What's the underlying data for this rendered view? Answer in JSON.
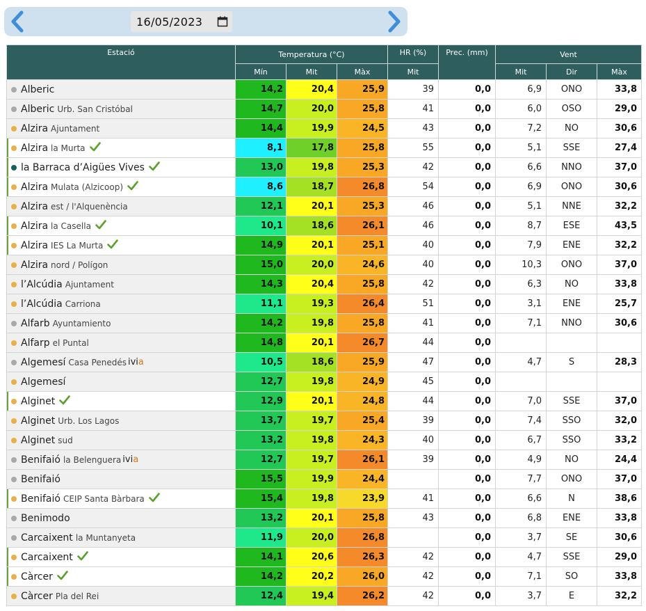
{
  "date": "16/05/2023",
  "headers": {
    "station": "Estació",
    "temperature": "Temperatura (°C)",
    "humidity": "HR (%)",
    "precip": "Prec. (mm)",
    "wind": "Vent",
    "min": "Mín",
    "mean": "Mit",
    "max": "Màx",
    "hr_mean": "Mit",
    "wind_mean": "Mit",
    "wind_dir": "Dir",
    "wind_max": "Màx"
  },
  "colors": {
    "dot_orange": "#e8b04a",
    "dot_gray": "#a9a9a9",
    "dot_teal": "#16605e",
    "check": "#5aa02c",
    "header": "#2e5e5e"
  },
  "rows": [
    {
      "name": "Alberic",
      "sub": "",
      "dot": "gray",
      "check": false,
      "ivia": false,
      "tmin": "14,2",
      "tmean": "20,4",
      "tmax": "25,9",
      "hr": "39",
      "prec": "0,0",
      "wmean": "6,9",
      "wdir": "ONO",
      "wmax": "33,8",
      "cmin": "#1fb81f",
      "cmean": "#ffff1a",
      "cmax": "#f9a825"
    },
    {
      "name": "Alberic",
      "sub": "Urb. San Cristóbal",
      "dot": "gray",
      "check": false,
      "ivia": false,
      "tmin": "14,7",
      "tmean": "20,0",
      "tmax": "25,8",
      "hr": "41",
      "prec": "0,0",
      "wmean": "6,0",
      "wdir": "OSO",
      "wmax": "29,0",
      "cmin": "#1fb81f",
      "cmean": "#c8f020",
      "cmax": "#f9a825"
    },
    {
      "name": "Alzira",
      "sub": "Ajuntament",
      "dot": "orange",
      "check": false,
      "ivia": false,
      "tmin": "14,4",
      "tmean": "19,9",
      "tmax": "24,5",
      "hr": "43",
      "prec": "0,0",
      "wmean": "7,2",
      "wdir": "NO",
      "wmax": "30,6",
      "cmin": "#1fb81f",
      "cmean": "#c8f020",
      "cmax": "#f9b525"
    },
    {
      "name": "Alzira",
      "sub": "la Murta",
      "dot": "orange",
      "check": true,
      "ivia": false,
      "tmin": "8,1",
      "tmean": "17,8",
      "tmax": "25,8",
      "hr": "55",
      "prec": "0,0",
      "wmean": "5,1",
      "wdir": "SSE",
      "wmax": "27,4",
      "cmin": "#1ff0ff",
      "cmean": "#6fd02a",
      "cmax": "#f9a825"
    },
    {
      "name": "la Barraca d’Aigües Vives",
      "sub": "",
      "dot": "teal",
      "check": true,
      "ivia": false,
      "tmin": "13,0",
      "tmean": "19,8",
      "tmax": "25,3",
      "hr": "42",
      "prec": "0,0",
      "wmean": "6,6",
      "wdir": "NNO",
      "wmax": "37,0",
      "cmin": "#22c855",
      "cmean": "#c8f020",
      "cmax": "#f9a825"
    },
    {
      "name": "Alzira",
      "sub": "Mulata (Alzicoop)",
      "dot": "orange",
      "check": true,
      "ivia": false,
      "tmin": "8,6",
      "tmean": "18,7",
      "tmax": "26,8",
      "hr": "54",
      "prec": "0,0",
      "wmean": "6,9",
      "wdir": "ONO",
      "wmax": "30,6",
      "cmin": "#1ff0ff",
      "cmean": "#a4e024",
      "cmax": "#f58a2a"
    },
    {
      "name": "Alzira",
      "sub": "est / l'Alquenència",
      "dot": "orange",
      "check": false,
      "ivia": false,
      "tmin": "12,1",
      "tmean": "20,1",
      "tmax": "25,3",
      "hr": "46",
      "prec": "0,0",
      "wmean": "5,1",
      "wdir": "NNE",
      "wmax": "32,2",
      "cmin": "#22c855",
      "cmean": "#ffff1a",
      "cmax": "#f9a825"
    },
    {
      "name": "Alzira",
      "sub": "la Casella",
      "dot": "orange",
      "check": true,
      "ivia": false,
      "tmin": "10,1",
      "tmean": "18,6",
      "tmax": "26,1",
      "hr": "46",
      "prec": "0,0",
      "wmean": "8,7",
      "wdir": "ESE",
      "wmax": "43,5",
      "cmin": "#1ee88a",
      "cmean": "#a4e024",
      "cmax": "#f58a2a"
    },
    {
      "name": "Alzira",
      "sub": "IES La Murta",
      "dot": "orange",
      "check": true,
      "ivia": false,
      "tmin": "14,9",
      "tmean": "20,1",
      "tmax": "25,1",
      "hr": "40",
      "prec": "0,0",
      "wmean": "7,9",
      "wdir": "ENE",
      "wmax": "32,2",
      "cmin": "#1fb81f",
      "cmean": "#ffff1a",
      "cmax": "#f9a825"
    },
    {
      "name": "Alzira",
      "sub": "nord / Polígon",
      "dot": "orange",
      "check": false,
      "ivia": false,
      "tmin": "15,0",
      "tmean": "20,0",
      "tmax": "24,6",
      "hr": "40",
      "prec": "0,0",
      "wmean": "10,3",
      "wdir": "ONO",
      "wmax": "37,0",
      "cmin": "#1fb81f",
      "cmean": "#c8f020",
      "cmax": "#f9b525"
    },
    {
      "name": "l’Alcúdia",
      "sub": "Ajuntament",
      "dot": "orange",
      "check": false,
      "ivia": false,
      "tmin": "14,3",
      "tmean": "20,4",
      "tmax": "25,8",
      "hr": "42",
      "prec": "0,0",
      "wmean": "6,3",
      "wdir": "NO",
      "wmax": "33,8",
      "cmin": "#1fb81f",
      "cmean": "#ffff1a",
      "cmax": "#f9a825"
    },
    {
      "name": "l’Alcúdia",
      "sub": "Carriona",
      "dot": "orange",
      "check": false,
      "ivia": false,
      "tmin": "11,1",
      "tmean": "19,3",
      "tmax": "26,4",
      "hr": "51",
      "prec": "0,0",
      "wmean": "3,1",
      "wdir": "ENE",
      "wmax": "25,7",
      "cmin": "#1ee88a",
      "cmean": "#c8f020",
      "cmax": "#f58a2a"
    },
    {
      "name": "Alfarb",
      "sub": "Ayuntamiento",
      "dot": "gray",
      "check": false,
      "ivia": false,
      "tmin": "14,2",
      "tmean": "19,8",
      "tmax": "25,8",
      "hr": "41",
      "prec": "0,0",
      "wmean": "7,1",
      "wdir": "NNO",
      "wmax": "30,6",
      "cmin": "#1fb81f",
      "cmean": "#c8f020",
      "cmax": "#f9a825"
    },
    {
      "name": "Alfarp",
      "sub": "el Puntal",
      "dot": "orange",
      "check": false,
      "ivia": false,
      "tmin": "14,8",
      "tmean": "20,1",
      "tmax": "26,7",
      "hr": "44",
      "prec": "0,0",
      "wmean": "",
      "wdir": "",
      "wmax": "",
      "cmin": "#1fb81f",
      "cmean": "#ffff1a",
      "cmax": "#f58a2a"
    },
    {
      "name": "Algemesí",
      "sub": "Casa Penedés",
      "dot": "gray",
      "check": false,
      "ivia": true,
      "tmin": "10,5",
      "tmean": "18,6",
      "tmax": "25,9",
      "hr": "47",
      "prec": "0,0",
      "wmean": "4,7",
      "wdir": "S",
      "wmax": "28,3",
      "cmin": "#1ee88a",
      "cmean": "#a4e024",
      "cmax": "#f9a825"
    },
    {
      "name": "Algemesí",
      "sub": "",
      "dot": "orange",
      "check": false,
      "ivia": false,
      "tmin": "12,7",
      "tmean": "19,8",
      "tmax": "24,9",
      "hr": "45",
      "prec": "0,0",
      "wmean": "",
      "wdir": "",
      "wmax": "",
      "cmin": "#22c855",
      "cmean": "#c8f020",
      "cmax": "#f9b525"
    },
    {
      "name": "Alginet",
      "sub": "",
      "dot": "orange",
      "check": true,
      "ivia": false,
      "tmin": "12,9",
      "tmean": "20,1",
      "tmax": "24,8",
      "hr": "44",
      "prec": "0,0",
      "wmean": "7,0",
      "wdir": "SSE",
      "wmax": "37,0",
      "cmin": "#22c855",
      "cmean": "#ffff1a",
      "cmax": "#f9b525"
    },
    {
      "name": "Alginet",
      "sub": "Urb. Los Lagos",
      "dot": "orange",
      "check": false,
      "ivia": false,
      "tmin": "13,7",
      "tmean": "19,7",
      "tmax": "25,4",
      "hr": "39",
      "prec": "0,0",
      "wmean": "7,4",
      "wdir": "SSO",
      "wmax": "32,0",
      "cmin": "#22c855",
      "cmean": "#c8f020",
      "cmax": "#f9a825"
    },
    {
      "name": "Alginet",
      "sub": "sud",
      "dot": "orange",
      "check": false,
      "ivia": false,
      "tmin": "13,2",
      "tmean": "19,8",
      "tmax": "24,3",
      "hr": "40",
      "prec": "0,0",
      "wmean": "6,7",
      "wdir": "SSO",
      "wmax": "33,2",
      "cmin": "#22c855",
      "cmean": "#c8f020",
      "cmax": "#f9b525"
    },
    {
      "name": "Benifaió",
      "sub": "la Belenguera",
      "dot": "gray",
      "check": false,
      "ivia": true,
      "tmin": "12,7",
      "tmean": "19,7",
      "tmax": "26,1",
      "hr": "39",
      "prec": "0,0",
      "wmean": "4,9",
      "wdir": "NO",
      "wmax": "24,4",
      "cmin": "#22c855",
      "cmean": "#c8f020",
      "cmax": "#f58a2a"
    },
    {
      "name": "Benifaió",
      "sub": "",
      "dot": "gray",
      "check": false,
      "ivia": false,
      "tmin": "15,5",
      "tmean": "19,9",
      "tmax": "24,4",
      "hr": "",
      "prec": "0,0",
      "wmean": "7,7",
      "wdir": "ONO",
      "wmax": "37,0",
      "cmin": "#1fb81f",
      "cmean": "#c8f020",
      "cmax": "#f9b525"
    },
    {
      "name": "Benifaió",
      "sub": "CEIP Santa Bàrbara",
      "dot": "orange",
      "check": true,
      "ivia": false,
      "tmin": "15,4",
      "tmean": "19,8",
      "tmax": "23,9",
      "hr": "41",
      "prec": "0,0",
      "wmean": "6,6",
      "wdir": "N",
      "wmax": "38,6",
      "cmin": "#1fb81f",
      "cmean": "#c8f020",
      "cmax": "#f7d92a"
    },
    {
      "name": "Benimodo",
      "sub": "",
      "dot": "gray",
      "check": false,
      "ivia": false,
      "tmin": "13,2",
      "tmean": "20,1",
      "tmax": "25,8",
      "hr": "43",
      "prec": "0,0",
      "wmean": "6,8",
      "wdir": "ENE",
      "wmax": "33,8",
      "cmin": "#22c855",
      "cmean": "#ffff1a",
      "cmax": "#f9a825"
    },
    {
      "name": "Carcaixent",
      "sub": "la Muntanyeta",
      "dot": "gray",
      "check": false,
      "ivia": false,
      "tmin": "11,9",
      "tmean": "20,0",
      "tmax": "26,8",
      "hr": "",
      "prec": "0,0",
      "wmean": "3,7",
      "wdir": "SE",
      "wmax": "30,6",
      "cmin": "#1ee88a",
      "cmean": "#c8f020",
      "cmax": "#f58a2a"
    },
    {
      "name": "Carcaixent",
      "sub": "",
      "dot": "orange",
      "check": true,
      "ivia": false,
      "tmin": "14,1",
      "tmean": "20,6",
      "tmax": "26,3",
      "hr": "42",
      "prec": "0,0",
      "wmean": "4,7",
      "wdir": "SSE",
      "wmax": "29,0",
      "cmin": "#1fb81f",
      "cmean": "#ffff1a",
      "cmax": "#f58a2a"
    },
    {
      "name": "Càrcer",
      "sub": "",
      "dot": "orange",
      "check": true,
      "ivia": false,
      "tmin": "14,2",
      "tmean": "20,2",
      "tmax": "26,0",
      "hr": "42",
      "prec": "0,0",
      "wmean": "7,1",
      "wdir": "SO",
      "wmax": "33,8",
      "cmin": "#1fb81f",
      "cmean": "#ffff1a",
      "cmax": "#f9a825"
    },
    {
      "name": "Càrcer",
      "sub": "Pla del Rei",
      "dot": "orange",
      "check": false,
      "ivia": false,
      "tmin": "12,4",
      "tmean": "19,4",
      "tmax": "26,2",
      "hr": "42",
      "prec": "0,0",
      "wmean": "3,7",
      "wdir": "E",
      "wmax": "32,2",
      "cmin": "#22c855",
      "cmean": "#c8f020",
      "cmax": "#f58a2a"
    }
  ]
}
